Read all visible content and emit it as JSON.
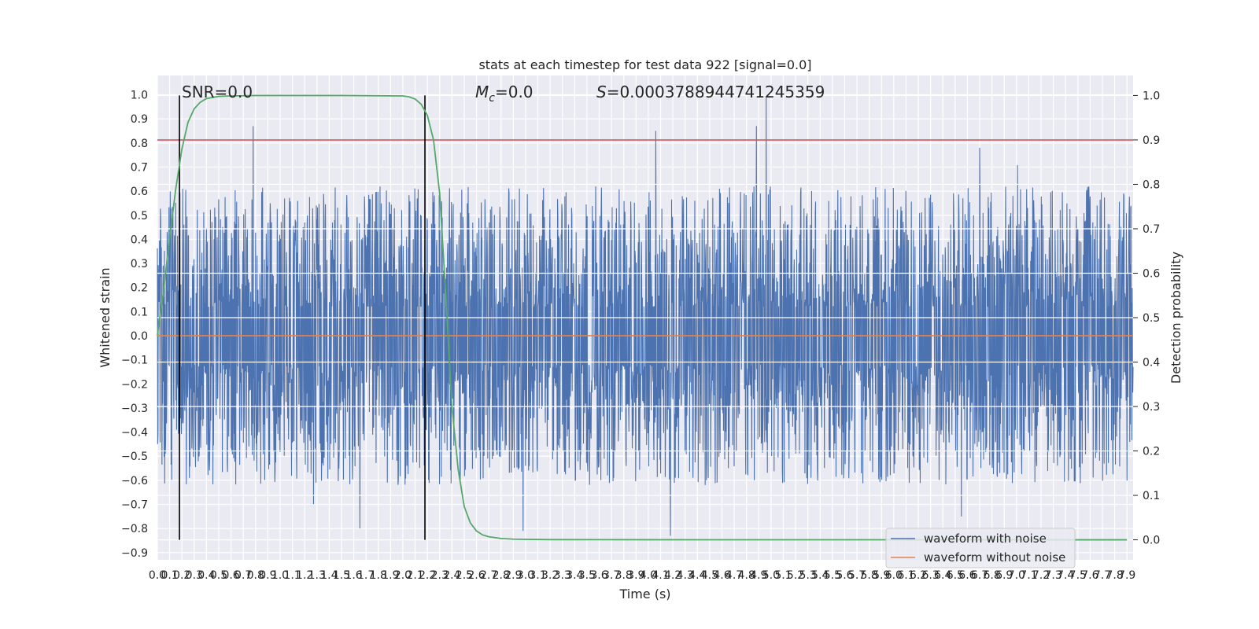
{
  "chart_data": {
    "type": "line",
    "title": "stats at each timestep for test data 922 [signal=0.0]",
    "xlabel": "Time (s)",
    "ylabel": "Whitened strain",
    "y2label": "Detection probability",
    "xlim": [
      0.0,
      7.95
    ],
    "ylim": [
      -0.93,
      1.08
    ],
    "y2lim": [
      -0.045,
      1.045
    ],
    "grid": true,
    "legend_position": "lower-right",
    "x_tick_labels": [
      "0.0",
      "0.1",
      "0.2",
      "0.3",
      "0.4",
      "0.5",
      "0.6",
      "0.7",
      "0.8",
      "0.9",
      "1.0",
      "1.1",
      "1.2",
      "1.3",
      "1.4",
      "1.5",
      "1.6",
      "1.7",
      "1.8",
      "1.9",
      "2.0",
      "2.1",
      "2.2",
      "2.3",
      "2.4",
      "2.5",
      "2.6",
      "2.7",
      "2.8",
      "2.9",
      "3.0",
      "3.1",
      "3.2",
      "3.3",
      "3.4",
      "3.5",
      "3.6",
      "3.7",
      "3.8",
      "3.9",
      "4.0",
      "4.1",
      "4.2",
      "4.3",
      "4.4",
      "4.5",
      "4.6",
      "4.7",
      "4.8",
      "4.9",
      "5.0",
      "5.1",
      "5.2",
      "5.3",
      "5.4",
      "5.5",
      "5.6",
      "5.7",
      "5.8",
      "5.9",
      "6.0",
      "6.1",
      "6.2",
      "6.3",
      "6.4",
      "6.5",
      "6.6",
      "6.7",
      "6.8",
      "6.9",
      "7.0",
      "7.1",
      "7.2",
      "7.3",
      "7.4",
      "7.5",
      "7.6",
      "7.7",
      "7.8",
      "7.9"
    ],
    "y_tick_labels": [
      "−0.9",
      "−0.8",
      "−0.7",
      "−0.6",
      "−0.5",
      "−0.4",
      "−0.3",
      "−0.2",
      "−0.1",
      "0.0",
      "0.1",
      "0.2",
      "0.3",
      "0.4",
      "0.5",
      "0.6",
      "0.7",
      "0.8",
      "0.9",
      "1.0"
    ],
    "y2_tick_labels": [
      "0.0",
      "0.1",
      "0.2",
      "0.3",
      "0.4",
      "0.5",
      "0.6",
      "0.7",
      "0.8",
      "0.9",
      "1.0"
    ],
    "annotations": {
      "snr": "SNR=0.0",
      "mc_symbol": "M",
      "mc_sub": "c",
      "mc_value": "=0.0",
      "s_symbol": "S",
      "s_value": "=0.0003788944741245359"
    },
    "vertical_lines_x": [
      0.18,
      2.18
    ],
    "threshold_probability": 0.9,
    "series": [
      {
        "name": "waveform with noise",
        "color": "#4c72b0",
        "axis": "left",
        "trace": "dense noise, |amplitude| typically 0.3–0.6",
        "peaks": [
          {
            "x": 0.78,
            "y": 0.87
          },
          {
            "x": 4.06,
            "y": 0.85
          },
          {
            "x": 4.88,
            "y": 0.87
          },
          {
            "x": 4.96,
            "y": 1.0
          },
          {
            "x": 6.7,
            "y": 0.78
          },
          {
            "x": 4.18,
            "y": -0.83
          },
          {
            "x": 1.65,
            "y": -0.8
          },
          {
            "x": 2.98,
            "y": -0.81
          },
          {
            "x": 6.55,
            "y": -0.75
          }
        ]
      },
      {
        "name": "waveform without noise",
        "color": "#dd8452",
        "axis": "left",
        "x": [
          0.0,
          7.95
        ],
        "y": [
          0.0,
          0.0
        ]
      },
      {
        "color": "#55a868",
        "axis": "right",
        "x": [
          0.0,
          0.05,
          0.1,
          0.15,
          0.2,
          0.25,
          0.3,
          0.35,
          0.4,
          0.5,
          0.6,
          0.8,
          1.0,
          1.5,
          2.0,
          2.05,
          2.1,
          2.15,
          2.2,
          2.25,
          2.3,
          2.35,
          2.4,
          2.45,
          2.5,
          2.55,
          2.6,
          2.65,
          2.7,
          2.8,
          2.9,
          3.0,
          3.2,
          4.0,
          5.0,
          6.0,
          7.0,
          7.9
        ],
        "y": [
          0.46,
          0.56,
          0.68,
          0.79,
          0.88,
          0.94,
          0.97,
          0.985,
          0.993,
          0.998,
          0.999,
          1.0,
          1.0,
          1.0,
          0.999,
          0.997,
          0.992,
          0.98,
          0.955,
          0.9,
          0.78,
          0.55,
          0.3,
          0.16,
          0.075,
          0.038,
          0.02,
          0.011,
          0.007,
          0.003,
          0.0015,
          0.001,
          0.0005,
          0.0002,
          0.0001,
          0.0001,
          0.0,
          0.0
        ]
      }
    ],
    "legend": [
      "waveform with noise",
      "waveform without noise"
    ]
  },
  "colors": {
    "plot_background": "#eaeaf2",
    "grid": "#ffffff",
    "threshold_line": "#c44e52",
    "marker_lines": "#000000",
    "noise": "#4c72b0",
    "clean": "#dd8452",
    "probability": "#55a868"
  }
}
